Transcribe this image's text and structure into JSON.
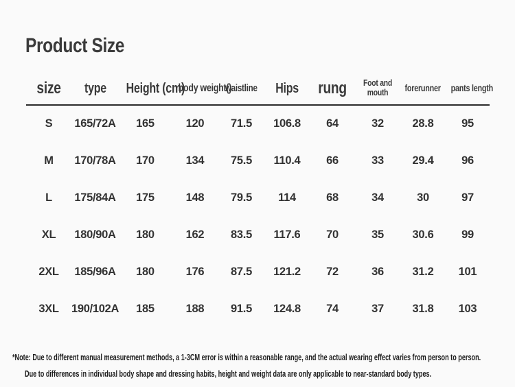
{
  "page": {
    "title": "Product Size",
    "background": "#fafafa",
    "text_color": "#333333",
    "rule_color": "#2b2b2b"
  },
  "chart_data": {
    "type": "table",
    "title": "Product Size",
    "columns": [
      "size",
      "type",
      "Height (cm)",
      "body weight()",
      "waistline",
      "Hips",
      "rung",
      "Foot and mouth",
      "forerunner",
      "pants length"
    ],
    "rows": [
      [
        "S",
        "165/72A",
        "165",
        "120",
        "71.5",
        "106.8",
        "64",
        "32",
        "28.8",
        "95"
      ],
      [
        "M",
        "170/78A",
        "170",
        "134",
        "75.5",
        "110.4",
        "66",
        "33",
        "29.4",
        "96"
      ],
      [
        "L",
        "175/84A",
        "175",
        "148",
        "79.5",
        "114",
        "68",
        "34",
        "30",
        "97"
      ],
      [
        "XL",
        "180/90A",
        "180",
        "162",
        "83.5",
        "117.6",
        "70",
        "35",
        "30.6",
        "99"
      ],
      [
        "2XL",
        "185/96A",
        "180",
        "176",
        "87.5",
        "121.2",
        "72",
        "36",
        "31.2",
        "101"
      ],
      [
        "3XL",
        "190/102A",
        "185",
        "188",
        "91.5",
        "124.8",
        "74",
        "37",
        "31.8",
        "103"
      ]
    ],
    "notes": [
      "*Note: Due to different manual measurement methods, a 1-3CM error is within a reasonable range, and the actual wearing effect varies from person to person.",
      "Due to differences in individual body shape and dressing habits, height and weight data are only applicable to near-standard body types."
    ]
  }
}
